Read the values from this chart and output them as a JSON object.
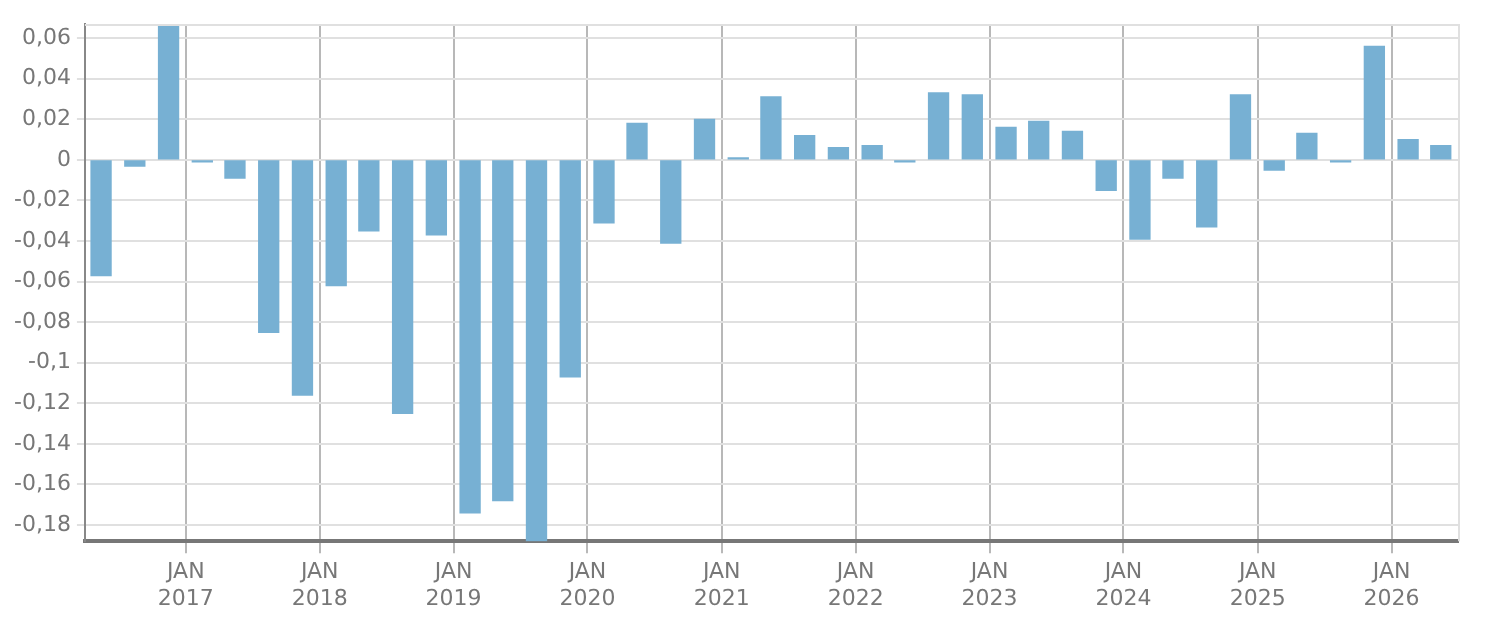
{
  "chart_data": {
    "type": "bar",
    "color": "#77b0d3",
    "x": [
      "2016-05-15",
      "2016-08-15",
      "2016-11-15",
      "2017-02-15",
      "2017-05-15",
      "2017-08-15",
      "2017-11-15",
      "2018-02-15",
      "2018-05-15",
      "2018-08-15",
      "2018-11-15",
      "2019-02-15",
      "2019-05-15",
      "2019-08-15",
      "2019-11-15",
      "2020-02-15",
      "2020-05-15",
      "2020-08-15",
      "2020-11-15",
      "2021-02-15",
      "2021-05-15",
      "2021-08-15",
      "2021-11-15",
      "2022-02-15",
      "2022-05-15",
      "2022-08-15",
      "2022-11-15",
      "2023-02-15",
      "2023-05-15",
      "2023-08-15",
      "2023-11-15",
      "2024-02-15",
      "2024-05-15",
      "2024-08-15",
      "2024-11-15",
      "2025-02-15",
      "2025-05-15",
      "2025-08-15",
      "2025-11-15",
      "2026-02-15",
      "2026-05-15"
    ],
    "values": [
      -0.057,
      -0.003,
      0.066,
      -0.001,
      -0.009,
      -0.085,
      -0.116,
      -0.062,
      -0.035,
      -0.125,
      -0.037,
      -0.174,
      -0.168,
      -0.188,
      -0.107,
      -0.031,
      0.018,
      -0.041,
      0.02,
      0.001,
      0.031,
      0.012,
      0.006,
      0.007,
      -0.001,
      0.033,
      0.032,
      0.016,
      0.019,
      0.014,
      -0.015,
      -0.039,
      -0.009,
      -0.033,
      0.032,
      -0.005,
      0.013,
      -0.001,
      0.056,
      0.01,
      0.007
    ],
    "xlim": [
      "2016-04-01",
      "2026-07-01"
    ],
    "xticks": [
      {
        "value": "2017-01-01",
        "label": "JAN 2017"
      },
      {
        "value": "2018-01-01",
        "label": "JAN 2018"
      },
      {
        "value": "2019-01-01",
        "label": "JAN 2019"
      },
      {
        "value": "2020-01-01",
        "label": "JAN 2020"
      },
      {
        "value": "2021-01-01",
        "label": "JAN 2021"
      },
      {
        "value": "2022-01-01",
        "label": "JAN 2022"
      },
      {
        "value": "2023-01-01",
        "label": "JAN 2023"
      },
      {
        "value": "2024-01-01",
        "label": "JAN 2024"
      },
      {
        "value": "2025-01-01",
        "label": "JAN 2025"
      },
      {
        "value": "2026-01-01",
        "label": "JAN 2026"
      }
    ],
    "ylim": [
      -0.188,
      0.067
    ],
    "yticks": [
      {
        "value": 0.06,
        "label": "0,06"
      },
      {
        "value": 0.04,
        "label": "0,04"
      },
      {
        "value": 0.02,
        "label": "0,02"
      },
      {
        "value": 0,
        "label": "0"
      },
      {
        "value": -0.02,
        "label": "-0,02"
      },
      {
        "value": -0.04,
        "label": "-0,04"
      },
      {
        "value": -0.06,
        "label": "-0,06"
      },
      {
        "value": -0.08,
        "label": "-0,08"
      },
      {
        "value": -0.1,
        "label": "-0,1"
      },
      {
        "value": -0.12,
        "label": "-0,12"
      },
      {
        "value": -0.14,
        "label": "-0,14"
      },
      {
        "value": -0.16,
        "label": "-0,16"
      },
      {
        "value": -0.18,
        "label": "-0,18"
      }
    ],
    "grid": true,
    "legend": false
  }
}
